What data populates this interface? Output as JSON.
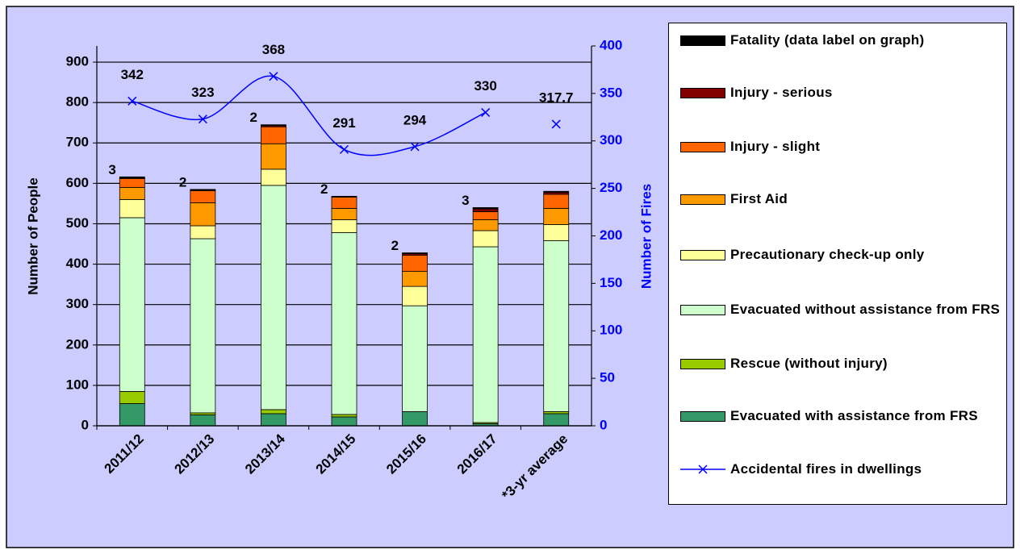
{
  "chart_data": {
    "type": "bar",
    "stacked": true,
    "categories": [
      "2011/12",
      "2012/13",
      "2013/14",
      "2014/15",
      "2015/16",
      "2016/17",
      "*3-yr average"
    ],
    "y_label": "Number of People",
    "y2_label": "Number of Fires",
    "ylim": [
      0,
      940
    ],
    "yticks": [
      0,
      100,
      200,
      300,
      400,
      500,
      600,
      700,
      800,
      900
    ],
    "y2lim": [
      0,
      400
    ],
    "y2ticks": [
      0,
      50,
      100,
      150,
      200,
      250,
      300,
      350,
      400
    ],
    "grid": true,
    "legend": "right",
    "series": [
      {
        "name": "Evacuated with assistance from FRS",
        "color": "#339966",
        "values": [
          55,
          27,
          30,
          22,
          35,
          5,
          30
        ]
      },
      {
        "name": "Rescue (without injury)",
        "color": "#99cc00",
        "values": [
          30,
          5,
          10,
          6,
          0,
          3,
          5
        ]
      },
      {
        "name": "Evacuated without assistance from FRS",
        "color": "#ccffcc",
        "values": [
          430,
          431,
          555,
          450,
          262,
          435,
          423
        ]
      },
      {
        "name": "Precautionary check-up only",
        "color": "#ffff99",
        "values": [
          45,
          32,
          40,
          32,
          48,
          40,
          40
        ]
      },
      {
        "name": "First Aid",
        "color": "#ff9900",
        "values": [
          30,
          57,
          63,
          28,
          37,
          27,
          40
        ]
      },
      {
        "name": "Injury - slight",
        "color": "#ff6600",
        "values": [
          22,
          30,
          42,
          28,
          40,
          20,
          35
        ]
      },
      {
        "name": "Injury - serious",
        "color": "#800000",
        "values": [
          1,
          1,
          3,
          0,
          4,
          7,
          5
        ]
      },
      {
        "name": "Fatality (data label on graph)",
        "color": "#000000",
        "values": [
          3,
          2,
          2,
          2,
          2,
          3,
          2.3
        ],
        "value_labels": [
          "3",
          "2",
          "2",
          "2",
          "2",
          "3",
          null
        ]
      },
      {
        "name": "Accidental fires in dwellings",
        "type": "line",
        "axis": "y2",
        "color": "#0000ff",
        "values": [
          342,
          323,
          368,
          291,
          294,
          330,
          317.7
        ],
        "unconnected": [
          6
        ]
      }
    ]
  }
}
